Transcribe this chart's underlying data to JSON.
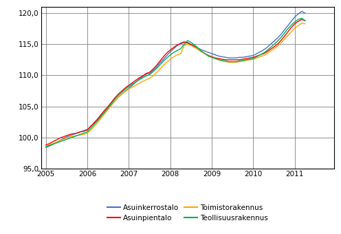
{
  "ylim": [
    95.0,
    121.0
  ],
  "yticks": [
    95.0,
    100.0,
    105.0,
    110.0,
    115.0,
    120.0
  ],
  "xlim_start": 2004.88,
  "xlim_end": 2011.95,
  "xticks": [
    2005,
    2006,
    2007,
    2008,
    2009,
    2010,
    2011
  ],
  "series": {
    "Asuinkerrostalo": {
      "color": "#4472c4",
      "data": [
        98.4,
        98.6,
        98.9,
        99.2,
        99.5,
        99.8,
        100.1,
        100.3,
        100.5,
        100.7,
        100.9,
        101.1,
        101.3,
        101.8,
        102.3,
        102.9,
        103.5,
        104.1,
        104.7,
        105.3,
        105.9,
        106.5,
        107.0,
        107.5,
        107.9,
        108.4,
        108.9,
        109.4,
        109.8,
        110.2,
        110.3,
        110.8,
        111.3,
        112.0,
        112.6,
        113.2,
        113.8,
        114.3,
        114.8,
        115.2,
        115.4,
        115.3,
        115.0,
        114.7,
        114.4,
        114.1,
        113.9,
        113.7,
        113.5,
        113.3,
        113.1,
        113.0,
        112.9,
        112.8,
        112.8,
        112.8,
        112.9,
        112.9,
        113.0,
        113.1,
        113.2,
        113.5,
        113.8,
        114.1,
        114.5,
        115.0,
        115.5,
        116.0,
        116.6,
        117.3,
        118.0,
        118.7,
        119.4,
        119.9,
        120.3,
        120.0
      ]
    },
    "Asuinpientalo": {
      "color": "#ff0000",
      "data": [
        98.8,
        99.0,
        99.3,
        99.6,
        99.9,
        100.1,
        100.3,
        100.5,
        100.6,
        100.7,
        100.9,
        101.0,
        101.2,
        101.8,
        102.4,
        103.0,
        103.7,
        104.4,
        105.0,
        105.7,
        106.4,
        107.0,
        107.5,
        108.0,
        108.4,
        108.8,
        109.2,
        109.6,
        109.9,
        110.3,
        110.5,
        111.0,
        111.6,
        112.3,
        113.0,
        113.6,
        114.1,
        114.5,
        114.9,
        115.1,
        115.3,
        115.2,
        114.9,
        114.6,
        114.2,
        113.8,
        113.5,
        113.2,
        113.0,
        112.8,
        112.7,
        112.6,
        112.5,
        112.5,
        112.5,
        112.5,
        112.5,
        112.6,
        112.7,
        112.8,
        112.9,
        113.1,
        113.3,
        113.5,
        113.8,
        114.2,
        114.6,
        115.0,
        115.6,
        116.3,
        117.0,
        117.7,
        118.3,
        118.7,
        119.0,
        118.8
      ]
    },
    "Toimistorakennus": {
      "color": "#ffa500",
      "data": [
        98.6,
        98.8,
        99.0,
        99.2,
        99.5,
        99.7,
        99.9,
        100.1,
        100.2,
        100.3,
        100.4,
        100.5,
        100.7,
        101.2,
        101.8,
        102.4,
        103.1,
        103.8,
        104.5,
        105.2,
        105.9,
        106.5,
        107.0,
        107.4,
        107.8,
        108.1,
        108.4,
        108.7,
        109.0,
        109.3,
        109.5,
        109.9,
        110.4,
        111.0,
        111.6,
        112.1,
        112.6,
        113.0,
        113.3,
        113.5,
        114.8,
        115.0,
        114.8,
        114.5,
        114.2,
        113.8,
        113.5,
        113.1,
        112.9,
        112.7,
        112.5,
        112.3,
        112.2,
        112.1,
        112.1,
        112.1,
        112.2,
        112.3,
        112.4,
        112.5,
        112.6,
        112.8,
        113.0,
        113.2,
        113.5,
        113.9,
        114.3,
        114.7,
        115.2,
        115.8,
        116.4,
        117.0,
        117.6,
        118.0,
        118.4,
        118.3
      ]
    },
    "Teollisuusrakennus": {
      "color": "#00b050",
      "data": [
        98.5,
        98.7,
        98.9,
        99.1,
        99.3,
        99.5,
        99.7,
        99.9,
        100.1,
        100.3,
        100.5,
        100.7,
        100.9,
        101.5,
        102.1,
        102.7,
        103.4,
        104.1,
        104.8,
        105.5,
        106.2,
        106.8,
        107.3,
        107.8,
        108.2,
        108.6,
        108.9,
        109.3,
        109.6,
        109.9,
        110.1,
        110.6,
        111.1,
        111.7,
        112.3,
        112.8,
        113.3,
        113.7,
        114.0,
        114.3,
        115.0,
        115.6,
        115.3,
        114.9,
        114.4,
        113.9,
        113.5,
        113.1,
        112.9,
        112.7,
        112.5,
        112.4,
        112.3,
        112.2,
        112.2,
        112.2,
        112.3,
        112.4,
        112.5,
        112.6,
        112.7,
        113.0,
        113.3,
        113.6,
        114.0,
        114.5,
        115.0,
        115.5,
        116.1,
        116.8,
        117.5,
        118.1,
        118.6,
        119.0,
        119.2,
        118.8
      ]
    }
  },
  "legend_labels": [
    "Asuinkerrostalo",
    "Asuinpientalo",
    "Toimistorakennus",
    "Teollisuusrakennus"
  ],
  "background_color": "#ffffff",
  "grid_color": "#808080",
  "line_width": 1.0
}
